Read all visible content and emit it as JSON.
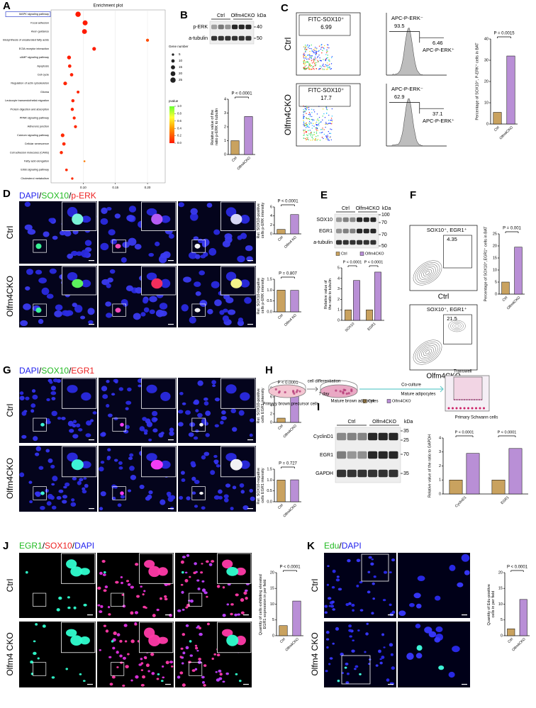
{
  "figure": {
    "A": {
      "letter": "A",
      "chart": {
        "type": "scatter",
        "title": "Enrichment plot",
        "pathways": [
          "MAPK signaling pathway",
          "Focal adhesion",
          "Axon guidance",
          "Biosynthesis of unsaturated fatty acids",
          "ECM-receptor interaction",
          "cAMP signaling pathway",
          "Apoptosis",
          "Cell cycle",
          "Regulation of actin cytoskeleton",
          "Glioma",
          "Leukocyte transendothelial migration",
          "Protein digestion and absorption",
          "PPAR signaling pathway",
          "Adherens junction",
          "Calcium signaling pathway",
          "Cellular senescence",
          "Cell adhesion molecules (CAMs)",
          "Fatty acid elongation",
          "ErbB signaling pathway",
          "Cholesterol metabolism"
        ],
        "gene_ratio": [
          0.092,
          0.103,
          0.102,
          0.2,
          0.117,
          0.078,
          0.079,
          0.082,
          0.072,
          0.092,
          0.084,
          0.083,
          0.086,
          0.088,
          0.068,
          0.07,
          0.066,
          0.102,
          0.074,
          0.083
        ],
        "gene_number": [
          25,
          22,
          21,
          8,
          12,
          13,
          10,
          10,
          12,
          7,
          9,
          9,
          8,
          8,
          12,
          10,
          9,
          3,
          6,
          5
        ],
        "pvalue": [
          0.0,
          0.0,
          0.0,
          0.15,
          0.01,
          0.01,
          0.02,
          0.02,
          0.03,
          0.03,
          0.03,
          0.03,
          0.04,
          0.04,
          0.05,
          0.05,
          0.05,
          0.3,
          0.05,
          0.05
        ],
        "xlim": [
          0.05,
          0.2275
        ],
        "xticks": [
          {
            "value": 0.1,
            "label": "0.10"
          },
          0.15,
          {
            "value": 0.2,
            "label": "0.20"
          }
        ],
        "size_title": "Gene number",
        "size_ticks": [
          5,
          10,
          15,
          20,
          25
        ],
        "color_title": "pvalue",
        "color_ticks": [
          {
            "value": 1,
            "label": "1.0"
          },
          0.8,
          0.6,
          0.4,
          0.2,
          {
            "value": 0,
            "label": "0.0"
          }
        ]
      }
    },
    "B": {
      "letter": "B",
      "blot": {
        "lanes": [
          "Ctrl",
          "Olfm4CKO"
        ],
        "kda_label": "kDa",
        "bands": [
          "p-ERK",
          "a-tubulin"
        ],
        "markers": [
          "40",
          "50"
        ]
      },
      "chart": {
        "type": "bar",
        "ylabel": "Relative value of the ratio p-ERK to tubulin",
        "categories": [
          "Ctrl",
          "Olfm4CKO"
        ],
        "values": [
          1.0,
          2.75
        ],
        "colors": [
          "#c9a25f",
          "#b98fd6"
        ],
        "ylim": [
          0,
          4
        ],
        "yticks": [
          0,
          1,
          2,
          3,
          4
        ],
        "annotation": "P < 0.0001"
      }
    },
    "C": {
      "letter": "C",
      "row_labels": [
        "Ctrl",
        "Olfm4CKO"
      ],
      "gates": [
        {
          "sox10_gate": "FITC-SOX10⁺",
          "sox10_pct": 6.99,
          "neg_gate": "APC-P-ERK⁻",
          "neg_pct": 93.5,
          "pos_pct": 6.46,
          "pos_gate": "APC-P-ERK⁺"
        },
        {
          "sox10_gate": "FITC-SOX10⁺",
          "sox10_pct": 17.7,
          "neg_gate": "APC-P-ERK⁻",
          "neg_pct": 62.9,
          "pos_pct": 37.1,
          "pos_gate": "APC-P-ERK⁺"
        }
      ],
      "chart": {
        "type": "bar",
        "ylabel": "Percentage of SOX10⁺, P-ERK⁺ cells in BAT",
        "categories": [
          "Ctrl",
          "Olfm4CKO"
        ],
        "values": [
          5.5,
          32
        ],
        "colors": [
          "#c9a25f",
          "#b98fd6"
        ],
        "ylim": [
          0,
          40
        ],
        "yticks": [
          0,
          10,
          20,
          30,
          40
        ],
        "annotation": "P = 0.0015"
      }
    },
    "D": {
      "letter": "D",
      "stains": [
        {
          "name": "DAPI",
          "color": "#2222ee"
        },
        {
          "name": "SOX10",
          "color": "#22bb22"
        },
        {
          "name": "p-ERK",
          "color": "#ee2222"
        }
      ],
      "separator": "/",
      "row_labels": [
        "Ctrl",
        "Olfm4CKO"
      ],
      "charts": [
        {
          "type": "bar",
          "ylabel": "Rel. SOX10-positive cells p-ERK intensity",
          "categories": [
            "Ctrl",
            "Olfm4 KO"
          ],
          "values": [
            1.0,
            4.3
          ],
          "colors": [
            "#c9a25f",
            "#b98fd6"
          ],
          "ylim": [
            0,
            6
          ],
          "yticks": [
            0,
            2,
            4,
            6
          ],
          "annotation": "P < 0.0001"
        },
        {
          "type": "bar",
          "ylabel": "Rel. SOX10-negative cells p-ERK intensity",
          "categories": [
            "Ctrl",
            "Olfm4 KO"
          ],
          "values": [
            1.0,
            0.99
          ],
          "colors": [
            "#c9a25f",
            "#b98fd6"
          ],
          "ylim": [
            0,
            1.5
          ],
          "yticks": [
            {
              "value": 0,
              "label": "0.0"
            },
            0.5,
            {
              "value": 1,
              "label": "1.0"
            },
            1.5
          ],
          "annotation": "P = 0.807"
        }
      ]
    },
    "E": {
      "letter": "E",
      "blot": {
        "lanes": [
          "Ctrl",
          "Olfm4CKO"
        ],
        "kda_label": "kDa",
        "bands": [
          "SOX10",
          "EGR1",
          "a-tubulin"
        ],
        "markers": [
          "100",
          "70",
          "70",
          "50"
        ]
      },
      "chart": {
        "type": "bar",
        "ylabel": "Relative value of the ratio to tubulin",
        "categories": [
          "SOX10",
          "EGR1"
        ],
        "series": [
          {
            "name": "Ctrl",
            "color": "#c9a25f",
            "values": [
              1.0,
              1.0
            ]
          },
          {
            "name": "Olfm4CKO",
            "color": "#b98fd6",
            "values": [
              3.8,
              4.6
            ]
          }
        ],
        "ylim": [
          0,
          5
        ],
        "yticks": [
          0,
          1,
          2,
          3,
          4,
          5
        ],
        "annotations": [
          "P < 0.0001",
          "P < 0.0001"
        ]
      }
    },
    "F": {
      "letter": "F",
      "gates": [
        {
          "gate": "SOX10⁺, EGR1⁺",
          "pct": 4.35,
          "row_label": "Ctrl"
        },
        {
          "gate": "SOX10⁺, EGR1⁺",
          "pct": 21.5,
          "row_label": "Olfm4CKO"
        }
      ],
      "chart": {
        "type": "bar",
        "ylabel": "Percentage of SOX10⁺,EGR1⁺ cells in BAT",
        "categories": [
          "Ctrl",
          "Olfm4CKO"
        ],
        "values": [
          5.0,
          19.5
        ],
        "colors": [
          "#c9a25f",
          "#b98fd6"
        ],
        "ylim": [
          0,
          25
        ],
        "yticks": [
          0,
          5,
          10,
          15,
          20,
          25
        ],
        "annotation": "P = 0.001"
      }
    },
    "G": {
      "letter": "G",
      "stains": [
        {
          "name": "DAPI",
          "color": "#2222ee"
        },
        {
          "name": "SOX10",
          "color": "#22bb22"
        },
        {
          "name": "EGR1",
          "color": "#ee2222"
        }
      ],
      "separator": "/",
      "row_labels": [
        "Ctrl",
        "Olfm4CKO"
      ],
      "charts": [
        {
          "type": "bar",
          "ylabel": "Rel. SOX10-positive cells EGR1 intensity",
          "categories": [
            "Ctrl",
            "Olfm4CKO"
          ],
          "values": [
            1.0,
            6.8
          ],
          "colors": [
            "#c9a25f",
            "#b98fd6"
          ],
          "ylim": [
            0,
            8
          ],
          "yticks": [
            0,
            2,
            4,
            6,
            8
          ],
          "annotation": "P < 0.0001"
        },
        {
          "type": "bar",
          "ylabel": "Rel. SOX10-negative cells EGR1 intensity",
          "categories": [
            "Ctrl",
            "Olfm4CKO"
          ],
          "values": [
            1.0,
            1.01
          ],
          "colors": [
            "#c9a25f",
            "#b98fd6"
          ],
          "ylim": [
            0,
            1.5
          ],
          "yticks": [
            {
              "value": 0,
              "label": "0.0"
            },
            0.5,
            {
              "value": 1,
              "label": "1.0"
            },
            1.5
          ],
          "annotation": "P = 0.727"
        }
      ]
    },
    "H": {
      "letter": "H",
      "labels": {
        "differentiation": "cell differentiation",
        "duration": "7 day",
        "coculture": "Co-culture",
        "transwell": "Transwell",
        "mature_adipocytes": "Mature adipocytes",
        "precursor": "Primary brown precursor cells",
        "mature_brown": "Mature brown adipocytes",
        "schwann": "Primary Schwann cells"
      }
    },
    "I": {
      "letter": "I",
      "blot": {
        "lanes": [
          "Ctrl",
          "Olfm4CKO"
        ],
        "kda_label": "kDa",
        "bands": [
          "CyclinD1",
          "EGR1",
          "GAPDH"
        ],
        "markers": [
          "35",
          "25",
          "70",
          "35"
        ]
      },
      "chart": {
        "type": "bar",
        "ylabel": "Relative value of the ratio to GAPDH",
        "categories": [
          "CyclinD1",
          "EGR1"
        ],
        "series": [
          {
            "name": "Ctrl",
            "color": "#c9a25f",
            "values": [
              1.0,
              1.0
            ]
          },
          {
            "name": "Olfm4CKO",
            "color": "#b98fd6",
            "values": [
              2.9,
              3.25
            ]
          }
        ],
        "ylim": [
          0,
          4
        ],
        "yticks": [
          0,
          1,
          2,
          3,
          4
        ],
        "annotations": [
          "P < 0.0001",
          "P < 0.0001"
        ]
      }
    },
    "J": {
      "letter": "J",
      "stains": [
        {
          "name": "EGR1",
          "color": "#22bb22"
        },
        {
          "name": "SOX10",
          "color": "#ee2222"
        },
        {
          "name": "DAPI",
          "color": "#2222ee"
        }
      ],
      "separator": "/",
      "row_labels": [
        "Ctrl",
        "Olfm4 CKO"
      ],
      "chart": {
        "type": "bar",
        "ylabel": "Quantity of cells exhibiting elevated EGR1 expression in per field",
        "categories": [
          "Ctrl",
          "Olfm4CKO"
        ],
        "values": [
          3.2,
          11
        ],
        "colors": [
          "#c9a25f",
          "#b98fd6"
        ],
        "ylim": [
          0,
          20
        ],
        "yticks": [
          0,
          5,
          10,
          15,
          20
        ],
        "annotation": "P < 0.0001"
      }
    },
    "K": {
      "letter": "K",
      "stains": [
        {
          "name": "Edu",
          "color": "#22bb22"
        },
        {
          "name": "DAPI",
          "color": "#2222ee"
        }
      ],
      "separator": "/",
      "row_labels": [
        "Ctrl",
        "Olfm4 CKO"
      ],
      "chart": {
        "type": "bar",
        "ylabel": "Quantity of Edu-positive cells in per field",
        "categories": [
          "Ctrl",
          "Olfm4CKO"
        ],
        "values": [
          2.2,
          11.5
        ],
        "colors": [
          "#c9a25f",
          "#b98fd6"
        ],
        "ylim": [
          0,
          20
        ],
        "yticks": [
          0,
          5,
          10,
          15,
          20
        ],
        "annotation": "P < 0.0001"
      }
    }
  }
}
